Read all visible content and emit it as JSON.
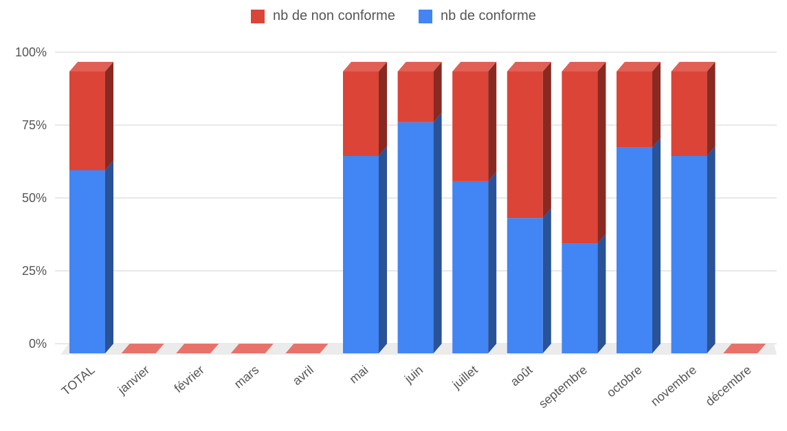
{
  "chart_data": {
    "type": "bar",
    "stacked": true,
    "percent_stacked": true,
    "three_d": true,
    "categories": [
      "TOTAL",
      "janvier",
      "février",
      "mars",
      "avril",
      "mai",
      "juin",
      "juillet",
      "août",
      "septembre",
      "octobre",
      "novembre",
      "décembre"
    ],
    "series": [
      {
        "name": "nb de conforme",
        "color": "#4285F4",
        "values": [
          65,
          0,
          0,
          0,
          0,
          70,
          82,
          61,
          48,
          39,
          73,
          70,
          0
        ]
      },
      {
        "name": "nb de non conforme",
        "color": "#DB4437",
        "values": [
          35,
          0,
          0,
          0,
          0,
          30,
          18,
          39,
          52,
          61,
          27,
          30,
          0
        ]
      }
    ],
    "legend_order": [
      "nb de non conforme",
      "nb de conforme"
    ],
    "legend_position": "top",
    "y_ticks": [
      "0%",
      "25%",
      "50%",
      "75%",
      "100%"
    ],
    "ylim": [
      0,
      100
    ],
    "grid": true
  }
}
